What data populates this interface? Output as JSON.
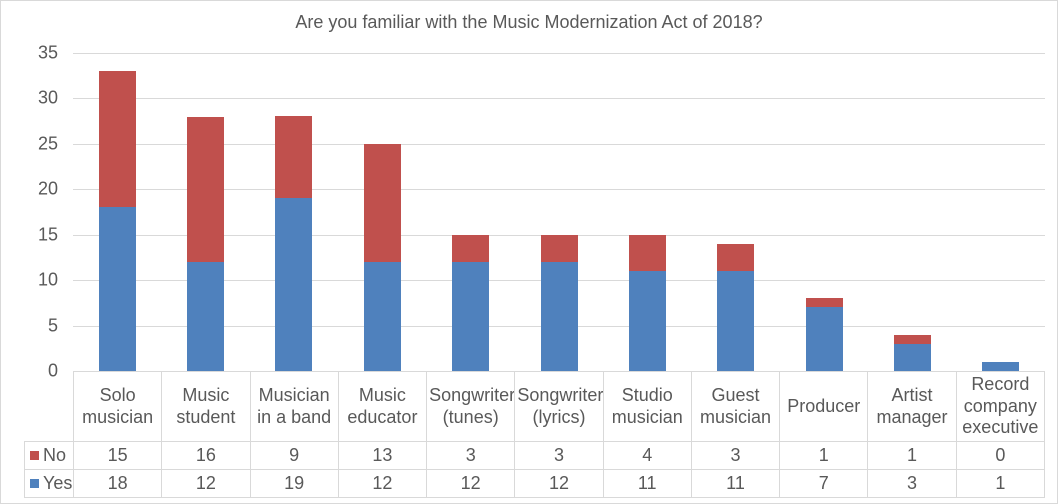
{
  "chart_data": {
    "type": "bar",
    "stacked": true,
    "title": "Are you familiar with the Music Modernization Act of 2018?",
    "categories": [
      "Solo musician",
      "Music student",
      "Musician in a band",
      "Music educator",
      "Songwriter (tunes)",
      "Songwriter (lyrics)",
      "Studio musician",
      "Guest musician",
      "Producer",
      "Artist manager",
      "Record company executive"
    ],
    "series": [
      {
        "name": "No",
        "color": "#C0504D",
        "values": [
          15,
          16,
          9,
          13,
          3,
          3,
          4,
          3,
          1,
          1,
          0
        ]
      },
      {
        "name": "Yes",
        "color": "#4F81BD",
        "values": [
          18,
          12,
          19,
          12,
          12,
          12,
          11,
          11,
          7,
          3,
          1
        ]
      }
    ],
    "stack_bottom": "Yes",
    "ylim": [
      0,
      35
    ],
    "ytick_step": 5,
    "yticks": [
      0,
      5,
      10,
      15,
      20,
      25,
      30,
      35
    ],
    "grid": true,
    "data_table": true,
    "legend_position": "data-table-left"
  },
  "colors": {
    "grid": "#D9D9D9",
    "border": "#D9D9D9",
    "text": "#595959",
    "background": "#FFFFFF"
  }
}
